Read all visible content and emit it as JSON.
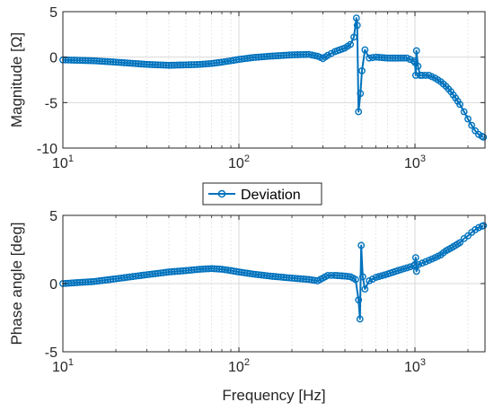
{
  "colors": {
    "series": "#0072BD",
    "axis": "#262626",
    "grid": "#d9d9d9"
  },
  "legend": {
    "label": "Deviation",
    "placement": "between-plots"
  },
  "chart_data": [
    {
      "type": "line",
      "title": "",
      "xlabel": "",
      "ylabel": "Magnitude [Ω]",
      "xscale": "log",
      "xlim": [
        10,
        2500
      ],
      "ylim": [
        -10,
        5
      ],
      "yticks": [
        -10,
        -5,
        0,
        5
      ],
      "xticks": [
        10,
        100,
        1000
      ],
      "grid": true,
      "marker": "circle",
      "series": [
        {
          "name": "Deviation",
          "points": [
            [
              10,
              -0.3
            ],
            [
              15,
              -0.4
            ],
            [
              20,
              -0.55
            ],
            [
              30,
              -0.8
            ],
            [
              40,
              -0.9
            ],
            [
              50,
              -0.85
            ],
            [
              60,
              -0.8
            ],
            [
              70,
              -0.7
            ],
            [
              80,
              -0.55
            ],
            [
              90,
              -0.4
            ],
            [
              100,
              -0.25
            ],
            [
              120,
              -0.05
            ],
            [
              150,
              0.1
            ],
            [
              200,
              0.25
            ],
            [
              250,
              0.3
            ],
            [
              280,
              0.1
            ],
            [
              300,
              -0.15
            ],
            [
              320,
              0.2
            ],
            [
              350,
              0.6
            ],
            [
              400,
              1.0
            ],
            [
              430,
              1.4
            ],
            [
              450,
              2.2
            ],
            [
              465,
              4.3
            ],
            [
              470,
              3.5
            ],
            [
              478,
              -6.0
            ],
            [
              490,
              -4.0
            ],
            [
              500,
              -1.5
            ],
            [
              520,
              0.8
            ],
            [
              550,
              -0.1
            ],
            [
              600,
              0.0
            ],
            [
              700,
              -0.1
            ],
            [
              800,
              -0.1
            ],
            [
              900,
              -0.1
            ],
            [
              980,
              -0.4
            ],
            [
              1000,
              -0.6
            ],
            [
              1010,
              -2.0
            ],
            [
              1020,
              0.7
            ],
            [
              1040,
              -1.0
            ],
            [
              1070,
              -2.0
            ],
            [
              1100,
              -2.0
            ],
            [
              1200,
              -2.0
            ],
            [
              1300,
              -2.3
            ],
            [
              1400,
              -2.7
            ],
            [
              1500,
              -3.2
            ],
            [
              1600,
              -3.8
            ],
            [
              1700,
              -4.5
            ],
            [
              1800,
              -5.2
            ],
            [
              1900,
              -6.0
            ],
            [
              2000,
              -6.8
            ],
            [
              2100,
              -7.5
            ],
            [
              2200,
              -8.1
            ],
            [
              2300,
              -8.5
            ],
            [
              2400,
              -8.7
            ],
            [
              2450,
              -8.8
            ]
          ]
        }
      ]
    },
    {
      "type": "line",
      "title": "",
      "xlabel": "Frequency [Hz]",
      "ylabel": "Phase angle [deg]",
      "xscale": "log",
      "xlim": [
        10,
        2500
      ],
      "ylim": [
        -5,
        5
      ],
      "yticks": [
        -5,
        0,
        5
      ],
      "xticks": [
        10,
        100,
        1000
      ],
      "grid": true,
      "marker": "circle",
      "series": [
        {
          "name": "Deviation",
          "points": [
            [
              10,
              0.0
            ],
            [
              15,
              0.15
            ],
            [
              20,
              0.35
            ],
            [
              30,
              0.65
            ],
            [
              40,
              0.85
            ],
            [
              50,
              0.95
            ],
            [
              60,
              1.05
            ],
            [
              70,
              1.1
            ],
            [
              80,
              1.05
            ],
            [
              90,
              0.95
            ],
            [
              100,
              0.85
            ],
            [
              120,
              0.7
            ],
            [
              150,
              0.55
            ],
            [
              200,
              0.4
            ],
            [
              250,
              0.3
            ],
            [
              280,
              0.2
            ],
            [
              300,
              0.4
            ],
            [
              320,
              0.6
            ],
            [
              350,
              0.6
            ],
            [
              400,
              0.55
            ],
            [
              430,
              0.5
            ],
            [
              460,
              0.3
            ],
            [
              478,
              -1.2
            ],
            [
              487,
              -2.6
            ],
            [
              495,
              2.8
            ],
            [
              505,
              0.5
            ],
            [
              520,
              -0.4
            ],
            [
              550,
              0.2
            ],
            [
              600,
              0.45
            ],
            [
              700,
              0.7
            ],
            [
              800,
              0.95
            ],
            [
              900,
              1.15
            ],
            [
              980,
              1.3
            ],
            [
              1000,
              1.4
            ],
            [
              1010,
              1.9
            ],
            [
              1020,
              0.9
            ],
            [
              1050,
              1.4
            ],
            [
              1100,
              1.5
            ],
            [
              1200,
              1.7
            ],
            [
              1300,
              1.9
            ],
            [
              1400,
              2.1
            ],
            [
              1500,
              2.4
            ],
            [
              1600,
              2.6
            ],
            [
              1700,
              2.8
            ],
            [
              1800,
              3.0
            ],
            [
              1900,
              3.3
            ],
            [
              2000,
              3.5
            ],
            [
              2100,
              3.75
            ],
            [
              2200,
              3.95
            ],
            [
              2300,
              4.1
            ],
            [
              2400,
              4.2
            ],
            [
              2450,
              4.25
            ]
          ]
        }
      ]
    }
  ]
}
